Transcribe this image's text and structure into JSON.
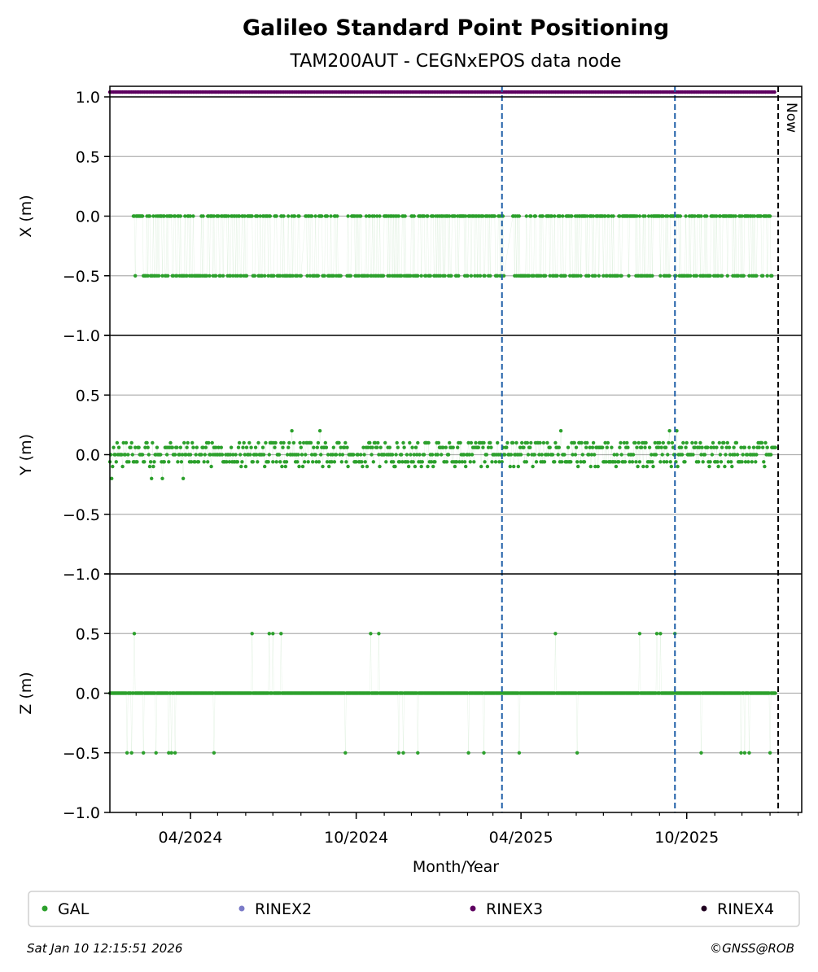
{
  "title": "Galileo Standard Point Positioning",
  "subtitle": "TAM200AUT - CEGNxEPOS data node",
  "xlabel": "Month/Year",
  "now_label": "Now",
  "timestamp": "Sat Jan 10 12:15:51 2026",
  "copyright": "©GNSS@ROB",
  "colors": {
    "gal": "#2ca02c",
    "rinex2": "#7b7bc8",
    "rinex3": "#5e0060",
    "rinex4": "#200020",
    "event_line": "#1f5fa8",
    "now_line": "#000000",
    "grid": "#b0b0b0"
  },
  "legend": [
    {
      "label": "GAL",
      "color": "#2ca02c"
    },
    {
      "label": "RINEX2",
      "color": "#7b7bc8"
    },
    {
      "label": "RINEX3",
      "color": "#5e0060"
    },
    {
      "label": "RINEX4",
      "color": "#200020"
    }
  ],
  "chart_data": {
    "type": "scatter",
    "x_range": [
      "2024-01-03",
      "2026-02-05"
    ],
    "x_ticks": [
      {
        "date": "2024-04-01",
        "label": "04/2024"
      },
      {
        "date": "2024-10-01",
        "label": "10/2024"
      },
      {
        "date": "2025-04-01",
        "label": "04/2025"
      },
      {
        "date": "2025-10-01",
        "label": "10/2025"
      }
    ],
    "event_dates": [
      "2025-03-11",
      "2025-09-18"
    ],
    "now_date": "2026-01-10",
    "data_start": "2024-01-03",
    "data_end": "2026-01-07",
    "rinex3_y": 1.04,
    "panels": [
      {
        "ylabel": "X (m)",
        "ylim": [
          -1.0,
          1.0
        ],
        "yticks": [
          {
            "value": 1.0,
            "label": "1.0"
          },
          {
            "value": 0.5,
            "label": "0.5"
          },
          {
            "value": 0.0,
            "label": "0.0"
          },
          {
            "value": -0.5,
            "label": "−0.5"
          },
          {
            "value": -1.0,
            "label": "−1.0"
          }
        ],
        "levels": [
          {
            "value": 0.0,
            "weight": 0.55
          },
          {
            "value": -0.5,
            "weight": 0.45
          }
        ],
        "gaps": [
          [
            "2024-01-03",
            "2024-01-28"
          ],
          [
            "2024-08-02",
            "2024-08-05"
          ],
          [
            "2024-09-15",
            "2024-09-20"
          ],
          [
            "2025-03-14",
            "2025-03-22"
          ],
          [
            "2026-01-04",
            "2026-01-07"
          ]
        ]
      },
      {
        "ylabel": "Y (m)",
        "ylim": [
          -1.0,
          1.0
        ],
        "yticks": [
          {
            "value": 1.0,
            "label": ""
          },
          {
            "value": 0.5,
            "label": "0.5"
          },
          {
            "value": 0.0,
            "label": "0.0"
          },
          {
            "value": -0.5,
            "label": "−0.5"
          },
          {
            "value": -1.0,
            "label": "−1.0"
          }
        ],
        "levels": [
          {
            "value": 0.1,
            "weight": 0.18
          },
          {
            "value": 0.06,
            "weight": 0.22
          },
          {
            "value": 0.0,
            "weight": 0.32
          },
          {
            "value": -0.06,
            "weight": 0.2
          },
          {
            "value": -0.1,
            "weight": 0.08
          }
        ],
        "outliers": [
          {
            "date": "2024-01-05",
            "y": -0.2
          },
          {
            "date": "2024-02-18",
            "y": -0.2
          },
          {
            "date": "2024-03-01",
            "y": -0.2
          },
          {
            "date": "2024-03-24",
            "y": -0.2
          },
          {
            "date": "2024-07-22",
            "y": 0.2
          },
          {
            "date": "2024-08-22",
            "y": 0.2
          },
          {
            "date": "2025-05-15",
            "y": 0.2
          },
          {
            "date": "2025-09-12",
            "y": 0.2
          },
          {
            "date": "2025-09-20",
            "y": 0.2
          }
        ]
      },
      {
        "ylabel": "Z (m)",
        "ylim": [
          -1.0,
          1.0
        ],
        "yticks": [
          {
            "value": 1.0,
            "label": ""
          },
          {
            "value": 0.5,
            "label": "0.5"
          },
          {
            "value": 0.0,
            "label": "0.0"
          },
          {
            "value": -0.5,
            "label": "−0.5"
          },
          {
            "value": -1.0,
            "label": "−1.0"
          }
        ],
        "levels": [
          {
            "value": 0.0,
            "weight": 1.0
          }
        ],
        "outliers": [
          {
            "date": "2024-01-30",
            "y": 0.5
          },
          {
            "date": "2024-06-08",
            "y": 0.5
          },
          {
            "date": "2024-06-27",
            "y": 0.5
          },
          {
            "date": "2024-07-01",
            "y": 0.5
          },
          {
            "date": "2024-07-10",
            "y": 0.5
          },
          {
            "date": "2024-10-17",
            "y": 0.5
          },
          {
            "date": "2024-10-26",
            "y": 0.5
          },
          {
            "date": "2025-05-09",
            "y": 0.5
          },
          {
            "date": "2025-08-10",
            "y": 0.5
          },
          {
            "date": "2025-08-29",
            "y": 0.5
          },
          {
            "date": "2025-09-02",
            "y": 0.5
          },
          {
            "date": "2025-09-18",
            "y": 0.5
          },
          {
            "date": "2024-01-22",
            "y": -0.5
          },
          {
            "date": "2024-01-27",
            "y": -0.5
          },
          {
            "date": "2024-02-09",
            "y": -0.5
          },
          {
            "date": "2024-02-23",
            "y": -0.5
          },
          {
            "date": "2024-03-08",
            "y": -0.5
          },
          {
            "date": "2024-03-11",
            "y": -0.5
          },
          {
            "date": "2024-03-15",
            "y": -0.5
          },
          {
            "date": "2024-04-27",
            "y": -0.5
          },
          {
            "date": "2024-09-19",
            "y": -0.5
          },
          {
            "date": "2024-11-17",
            "y": -0.5
          },
          {
            "date": "2024-11-22",
            "y": -0.5
          },
          {
            "date": "2024-12-08",
            "y": -0.5
          },
          {
            "date": "2025-02-02",
            "y": -0.5
          },
          {
            "date": "2025-02-19",
            "y": -0.5
          },
          {
            "date": "2025-03-30",
            "y": -0.5
          },
          {
            "date": "2025-06-02",
            "y": -0.5
          },
          {
            "date": "2025-10-17",
            "y": -0.5
          },
          {
            "date": "2025-11-30",
            "y": -0.5
          },
          {
            "date": "2025-12-04",
            "y": -0.5
          },
          {
            "date": "2025-12-09",
            "y": -0.5
          },
          {
            "date": "2026-01-01",
            "y": -0.5
          }
        ]
      }
    ]
  }
}
